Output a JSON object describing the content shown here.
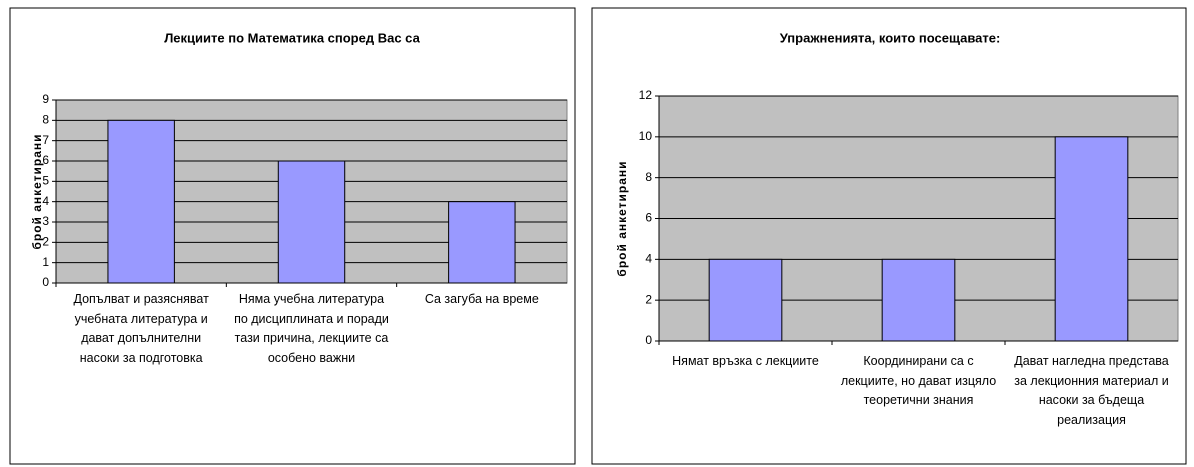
{
  "chart_data": [
    {
      "type": "bar",
      "title": "Лекциите по Математика според Вас са",
      "y_label": "брой анкетирани",
      "categories": [
        "Допълват и разясняват учебната литература и дават допълнителни насоки за подготовка",
        "Няма учебна литература по дисциплината и поради тази причина, лекциите са особено важни",
        "Са загуба на време"
      ],
      "values": [
        8,
        6,
        4
      ],
      "color": "#9999ff",
      "ylim": [
        0,
        9
      ],
      "yticks": [
        0,
        1,
        2,
        3,
        4,
        5,
        6,
        7,
        8,
        9
      ],
      "grid": true
    },
    {
      "type": "bar",
      "title": "Упражненията, които посещавате:",
      "y_label": "брой анкетирани",
      "categories": [
        "Нямат връзка с лекциите",
        "Координирани са с лекциите, но дават изцяло теоретични знания",
        "Дават нагледна представа за лекционния материал и насоки за бъдеща реализация"
      ],
      "values": [
        4,
        4,
        10
      ],
      "color": "#9999ff",
      "ylim": [
        0,
        12
      ],
      "yticks": [
        0,
        2,
        4,
        6,
        8,
        10,
        12
      ],
      "grid": true
    }
  ]
}
